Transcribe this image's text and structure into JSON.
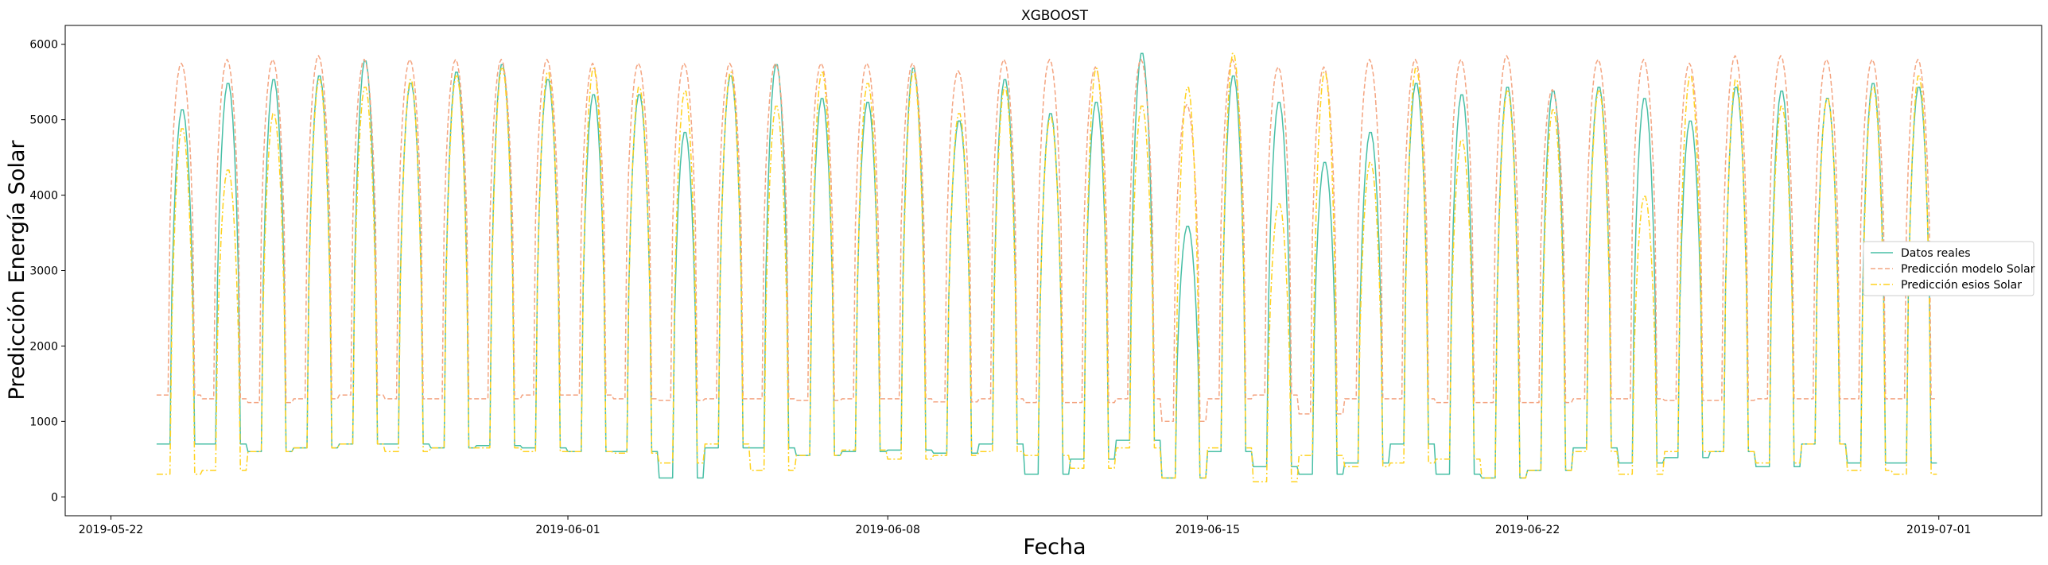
{
  "chart_data": {
    "type": "line",
    "title": "XGBOOST",
    "xlabel": "Fecha",
    "ylabel": "Predicción Energía Solar",
    "xlim": [
      "2019-05-21T00:00",
      "2019-07-03T06:00"
    ],
    "ylim": [
      -250,
      6250
    ],
    "xticks": [
      "2019-05-22",
      "2019-06-01",
      "2019-06-08",
      "2019-06-15",
      "2019-06-22",
      "2019-07-01"
    ],
    "yticks": [
      0,
      1000,
      2000,
      3000,
      4000,
      5000,
      6000
    ],
    "grid": false,
    "legend_position": "center-right",
    "x_start": "2019-05-23T00:00",
    "x_end": "2019-06-30T23:00",
    "x_step": "1 hour",
    "daily_peaks": {
      "dates": [
        "2019-05-23",
        "2019-05-24",
        "2019-05-25",
        "2019-05-26",
        "2019-05-27",
        "2019-05-28",
        "2019-05-29",
        "2019-05-30",
        "2019-05-31",
        "2019-06-01",
        "2019-06-02",
        "2019-06-03",
        "2019-06-04",
        "2019-06-05",
        "2019-06-06",
        "2019-06-07",
        "2019-06-08",
        "2019-06-09",
        "2019-06-10",
        "2019-06-11",
        "2019-06-12",
        "2019-06-13",
        "2019-06-14",
        "2019-06-15",
        "2019-06-16",
        "2019-06-17",
        "2019-06-18",
        "2019-06-19",
        "2019-06-20",
        "2019-06-21",
        "2019-06-22",
        "2019-06-23",
        "2019-06-24",
        "2019-06-25",
        "2019-06-26",
        "2019-06-27",
        "2019-06-28",
        "2019-06-29",
        "2019-06-30"
      ],
      "real": [
        5150,
        5500,
        5550,
        5600,
        5800,
        5500,
        5650,
        5750,
        5550,
        5350,
        5350,
        4850,
        5600,
        5750,
        5300,
        5250,
        5700,
        5000,
        5550,
        5100,
        5250,
        5900,
        3600,
        5600,
        5250,
        4450,
        4850,
        5500,
        5350,
        5450,
        5400,
        5450,
        5300,
        5000,
        5450,
        5400,
        5300,
        5500,
        5450
      ],
      "modelo": [
        5750,
        5800,
        5800,
        5850,
        5800,
        5800,
        5800,
        5800,
        5800,
        5750,
        5750,
        5750,
        5750,
        5750,
        5750,
        5750,
        5750,
        5650,
        5800,
        5800,
        5700,
        5800,
        5200,
        5800,
        5700,
        5700,
        5800,
        5800,
        5800,
        5850,
        5400,
        5800,
        5800,
        5750,
        5850,
        5850,
        5800,
        5800,
        5800
      ],
      "esios": [
        4900,
        4350,
        5100,
        5550,
        5450,
        5550,
        5600,
        5700,
        5650,
        5700,
        5450,
        5400,
        5650,
        5200,
        5650,
        5500,
        5650,
        5100,
        5450,
        5050,
        5700,
        5200,
        5450,
        5900,
        3900,
        5650,
        4450,
        5700,
        4750,
        5400,
        5150,
        5400,
        4000,
        5600,
        5550,
        5200,
        5300,
        5450,
        5600
      ]
    },
    "night_levels": {
      "real": [
        700,
        700,
        600,
        650,
        700,
        700,
        650,
        680,
        650,
        600,
        600,
        250,
        650,
        650,
        550,
        600,
        620,
        580,
        700,
        300,
        500,
        750,
        250,
        600,
        400,
        300,
        450,
        700,
        300,
        250,
        350,
        650,
        450,
        520,
        600,
        400,
        700,
        450,
        450
      ],
      "modelo": [
        1350,
        1300,
        1250,
        1300,
        1350,
        1300,
        1300,
        1300,
        1350,
        1350,
        1300,
        1280,
        1300,
        1300,
        1280,
        1300,
        1300,
        1260,
        1300,
        1250,
        1250,
        1300,
        1000,
        1300,
        1350,
        1100,
        1300,
        1300,
        1250,
        1250,
        1250,
        1300,
        1300,
        1280,
        1280,
        1300,
        1300,
        1300,
        1300
      ],
      "esios": [
        300,
        350,
        600,
        650,
        700,
        600,
        650,
        650,
        600,
        600,
        580,
        450,
        700,
        350,
        550,
        620,
        500,
        550,
        600,
        550,
        380,
        650,
        250,
        650,
        200,
        550,
        400,
        450,
        500,
        250,
        350,
        600,
        300,
        600,
        600,
        450,
        700,
        350,
        300
      ]
    },
    "series": [
      {
        "name": "Datos reales",
        "color": "#48bfa6",
        "dash": "solid"
      },
      {
        "name": "Predicción modelo Solar",
        "color": "#f4a582",
        "dash": "dashed"
      },
      {
        "name": "Predicción esios Solar",
        "color": "#ffd21f",
        "dash": "dashdot"
      }
    ]
  }
}
